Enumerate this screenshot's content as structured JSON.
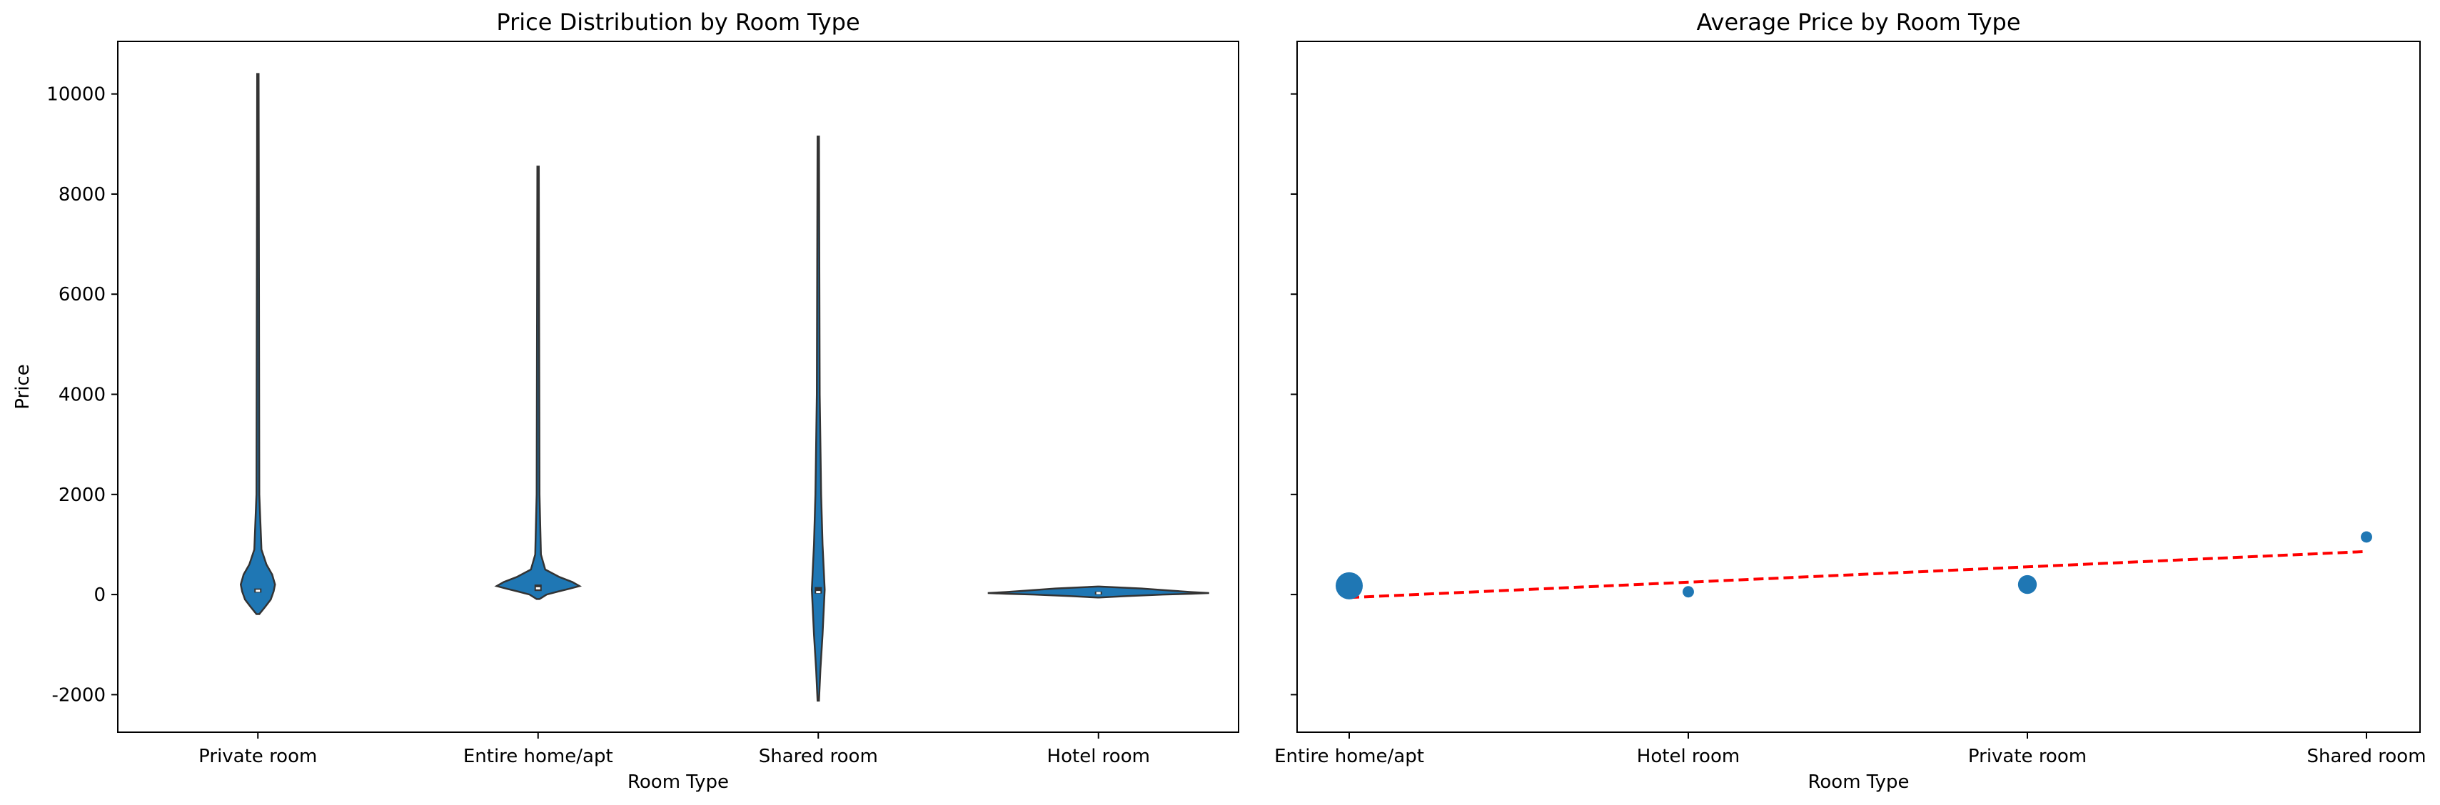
{
  "chart_data": [
    {
      "type": "violin",
      "title": "Price Distribution by Room Type",
      "xlabel": "Room Type",
      "ylabel": "Price",
      "categories": [
        "Private room",
        "Entire home/apt",
        "Shared room",
        "Hotel room"
      ],
      "ylim": [
        -2750,
        11050
      ],
      "yticks": [
        -2000,
        0,
        2000,
        4000,
        6000,
        8000,
        10000
      ],
      "color": "#1f77b4",
      "violins": [
        {
          "category": "Private room",
          "min": -390,
          "max": 10400,
          "q1": 40,
          "median": 75,
          "q3": 120
        },
        {
          "category": "Entire home/apt",
          "min": -90,
          "max": 8550,
          "q1": 70,
          "median": 125,
          "q3": 200
        },
        {
          "category": "Shared room",
          "min": -2120,
          "max": 9150,
          "q1": 20,
          "median": 50,
          "q3": 150
        },
        {
          "category": "Hotel room",
          "min": -60,
          "max": 160,
          "q1": 0,
          "median": 30,
          "q3": 60
        }
      ],
      "grid": false
    },
    {
      "type": "scatter",
      "title": "Average Price by Room Type",
      "xlabel": "Room Type",
      "ylabel": "",
      "categories": [
        "Entire home/apt",
        "Hotel room",
        "Private room",
        "Shared room"
      ],
      "values": [
        175,
        55,
        200,
        1150
      ],
      "relative_size": [
        1.0,
        0.15,
        0.55,
        0.15
      ],
      "trend_line": {
        "start": -60,
        "end": 860,
        "color": "#ff0000",
        "style": "dashed"
      },
      "color": "#1f77b4",
      "ylim": [
        -2750,
        11050
      ],
      "grid": false
    }
  ]
}
